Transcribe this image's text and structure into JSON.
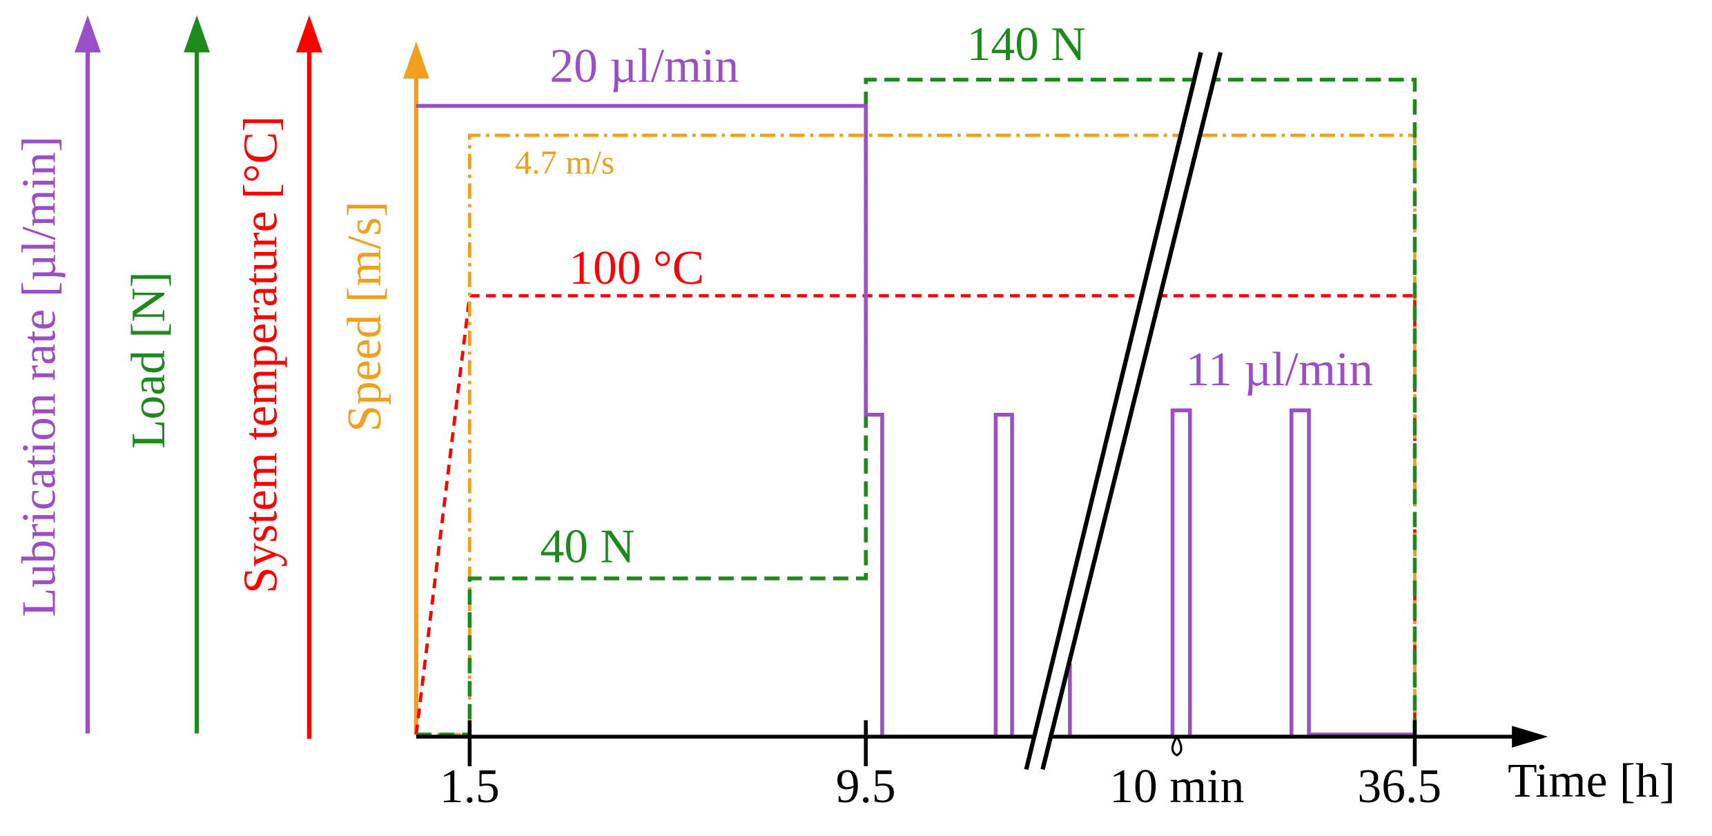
{
  "axes": {
    "lubrication": "Lubrication rate [µl/min]",
    "load": "Load [N]",
    "temperature": "System temperature [°C]",
    "speed": "Speed [m/s]",
    "time": "Time [h]"
  },
  "time_labels": [
    "1.5",
    "9.5",
    "10 min",
    "36.5"
  ],
  "annotations": {
    "lubrication_high": "20 µl/min",
    "lubrication_low": "11 µl/min",
    "load_high": "140 N",
    "load_low": "40 N",
    "speed": "4.7 m/s",
    "temperature": "100 °C"
  }
}
